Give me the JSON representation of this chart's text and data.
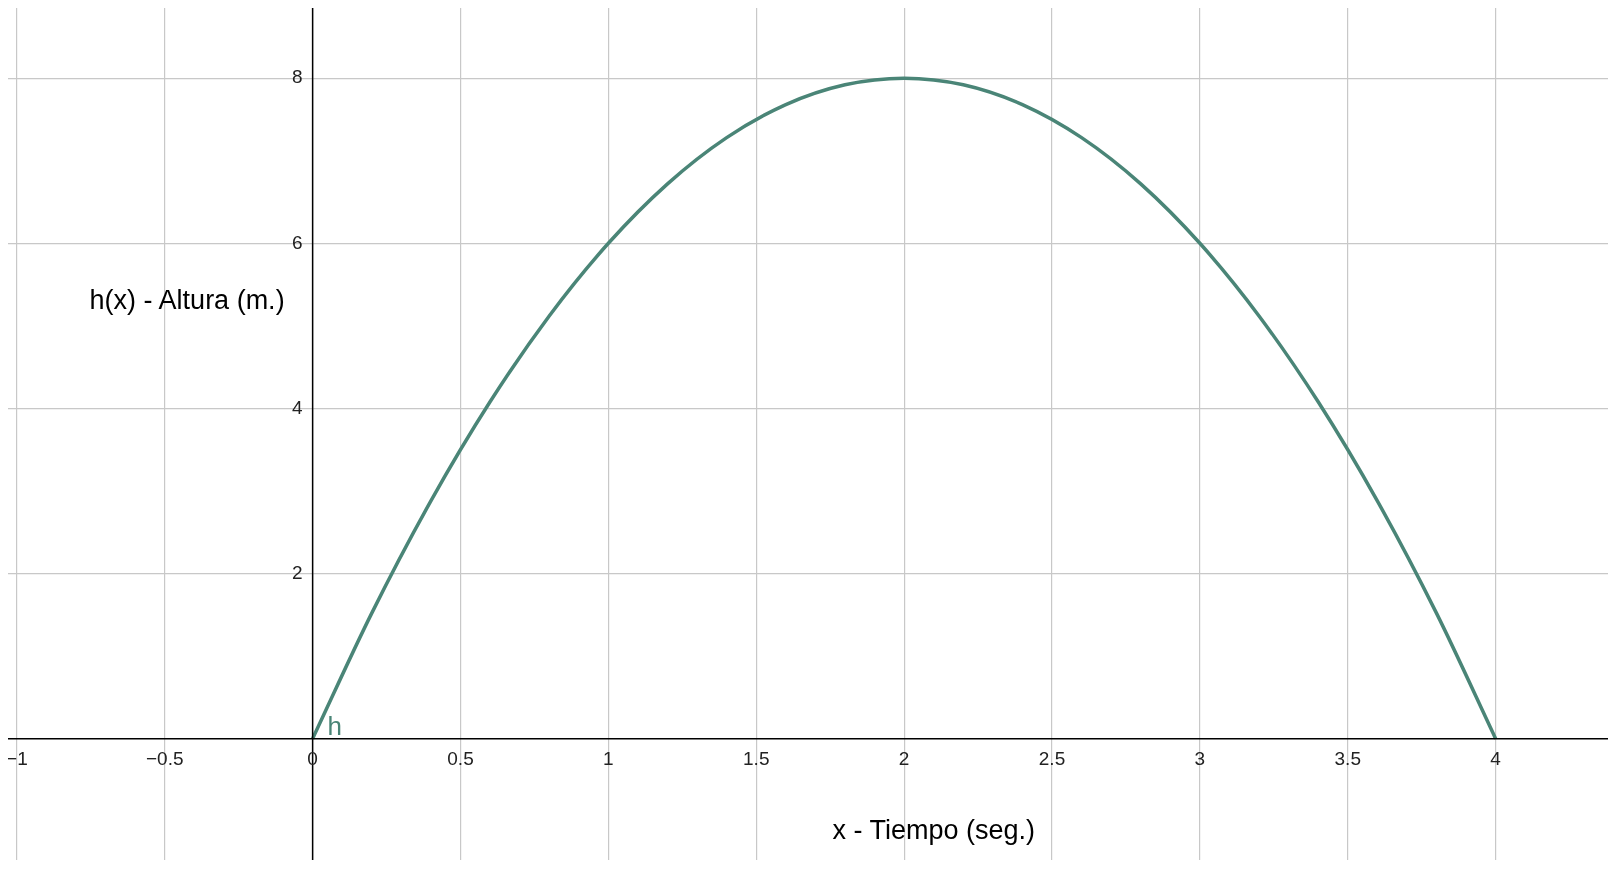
{
  "chart_data": {
    "type": "line",
    "xlabel": "x - Tiempo (seg.)",
    "ylabel": "h(x) - Altura (m.)",
    "xlim": [
      -1.03,
      4.38
    ],
    "ylim": [
      -1.47,
      8.85
    ],
    "xticks": [
      {
        "value": -1,
        "label": "−1"
      },
      {
        "value": -0.5,
        "label": "−0.5"
      },
      0,
      0.5,
      1,
      1.5,
      2,
      2.5,
      3,
      3.5,
      4
    ],
    "yticks": [
      2,
      4,
      6,
      8
    ],
    "grid": true,
    "legend": false,
    "marker": "none",
    "line_style": "solid",
    "series": [
      {
        "name": "h",
        "color": "#4a8577",
        "x": [
          0,
          0.2,
          0.4,
          0.6,
          0.8,
          1,
          1.2,
          1.4,
          1.6,
          1.8,
          2,
          2.2,
          2.4,
          2.6,
          2.8,
          3,
          3.2,
          3.4,
          3.6,
          3.8,
          4
        ],
        "values": [
          0,
          1.52,
          2.88,
          4.08,
          5.12,
          6,
          6.72,
          7.28,
          7.68,
          7.92,
          8,
          7.92,
          7.68,
          7.28,
          6.72,
          6,
          5.12,
          4.08,
          2.88,
          1.52,
          0
        ]
      }
    ]
  }
}
